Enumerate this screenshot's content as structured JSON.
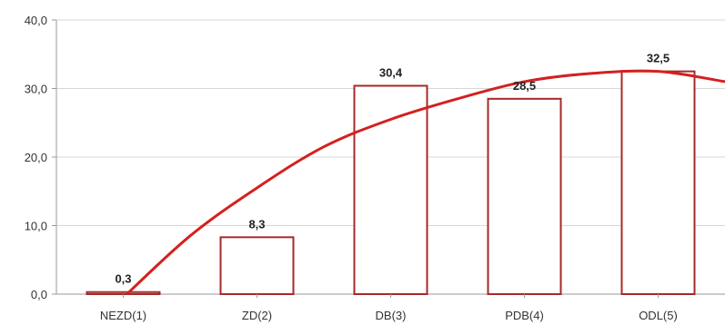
{
  "chart_data": {
    "type": "bar",
    "categories": [
      "NEZD(1)",
      "ZD(2)",
      "DB(3)",
      "PDB(4)",
      "ODL(5)"
    ],
    "values": [
      0.3,
      8.3,
      30.4,
      28.5,
      32.5
    ],
    "data_labels": [
      "0,3",
      "8,3",
      "30,4",
      "28,5",
      "32,5"
    ],
    "y_ticks": [
      0,
      10,
      20,
      30,
      40
    ],
    "y_tick_labels": [
      "0,0",
      "10,0",
      "20,0",
      "30,0",
      "40,0"
    ],
    "ylim": [
      0,
      40
    ],
    "grid": true,
    "legend": false,
    "trend_line": {
      "type": "polynomial",
      "x": [
        1,
        1.5,
        2,
        2.5,
        3,
        3.5,
        4,
        4.5,
        5,
        5.5
      ],
      "y": [
        -0.5,
        8.5,
        15.5,
        21.5,
        25.5,
        28.5,
        31.0,
        32.2,
        32.5,
        31.0
      ]
    },
    "colors": {
      "bar_fill": "#ffffff",
      "bar_stroke": "#a52a2a",
      "trend": "#d42020",
      "grid": "#d8d8d8",
      "axis": "#999999"
    }
  }
}
